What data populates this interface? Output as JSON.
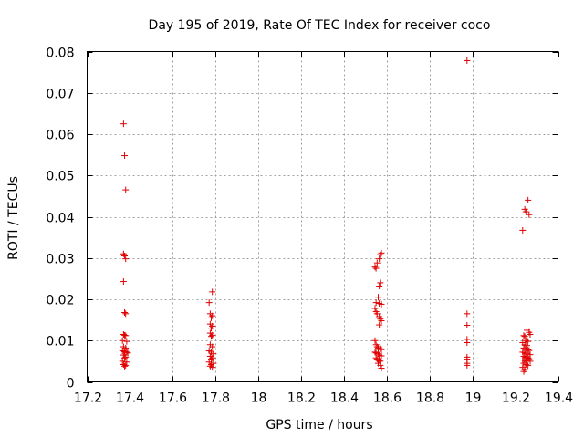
{
  "chart_data": {
    "type": "scatter",
    "title": "Day 195 of 2019, Rate Of TEC Index for receiver coco",
    "xlabel": "GPS time / hours",
    "ylabel": "ROTI / TECUs",
    "xlim": [
      17.2,
      19.4
    ],
    "ylim": [
      0,
      0.08
    ],
    "xticks": [
      "17.2",
      "17.4",
      "17.6",
      "17.8",
      "18",
      "18.2",
      "18.4",
      "18.6",
      "18.8",
      "19",
      "19.2",
      "19.4"
    ],
    "yticks": [
      "0",
      "0.01",
      "0.02",
      "0.03",
      "0.04",
      "0.05",
      "0.06",
      "0.07",
      "0.08"
    ],
    "grid": true,
    "marker": "+",
    "color": "#e00000",
    "series": [
      {
        "name": "ROTI",
        "points": [
          [
            17.37,
            0.0625
          ],
          [
            17.375,
            0.0548
          ],
          [
            17.38,
            0.0465
          ],
          [
            17.37,
            0.031
          ],
          [
            17.375,
            0.0305
          ],
          [
            17.38,
            0.0298
          ],
          [
            17.37,
            0.0243
          ],
          [
            17.375,
            0.0168
          ],
          [
            17.38,
            0.0165
          ],
          [
            17.37,
            0.0115
          ],
          [
            17.375,
            0.0113
          ],
          [
            17.38,
            0.0112
          ],
          [
            17.365,
            0.01
          ],
          [
            17.385,
            0.0098
          ],
          [
            17.37,
            0.0085
          ],
          [
            17.38,
            0.0082
          ],
          [
            17.365,
            0.0075
          ],
          [
            17.375,
            0.0073
          ],
          [
            17.385,
            0.0072
          ],
          [
            17.39,
            0.007
          ],
          [
            17.37,
            0.0065
          ],
          [
            17.38,
            0.006
          ],
          [
            17.375,
            0.0058
          ],
          [
            17.365,
            0.005
          ],
          [
            17.385,
            0.0048
          ],
          [
            17.37,
            0.0042
          ],
          [
            17.38,
            0.004
          ],
          [
            17.375,
            0.0038
          ],
          [
            17.785,
            0.0218
          ],
          [
            17.77,
            0.0192
          ],
          [
            17.775,
            0.0165
          ],
          [
            17.785,
            0.016
          ],
          [
            17.78,
            0.0155
          ],
          [
            17.775,
            0.014
          ],
          [
            17.785,
            0.0135
          ],
          [
            17.78,
            0.013
          ],
          [
            17.775,
            0.0118
          ],
          [
            17.785,
            0.0113
          ],
          [
            17.78,
            0.011
          ],
          [
            17.775,
            0.009
          ],
          [
            17.785,
            0.0085
          ],
          [
            17.77,
            0.0075
          ],
          [
            17.78,
            0.0072
          ],
          [
            17.79,
            0.0068
          ],
          [
            17.775,
            0.0062
          ],
          [
            17.785,
            0.0058
          ],
          [
            17.78,
            0.0055
          ],
          [
            17.77,
            0.0048
          ],
          [
            17.79,
            0.0045
          ],
          [
            17.78,
            0.0042
          ],
          [
            17.775,
            0.0038
          ],
          [
            17.785,
            0.0035
          ],
          [
            18.575,
            0.0312
          ],
          [
            18.57,
            0.0308
          ],
          [
            18.565,
            0.0298
          ],
          [
            18.555,
            0.0288
          ],
          [
            18.545,
            0.0278
          ],
          [
            18.55,
            0.0275
          ],
          [
            18.57,
            0.024
          ],
          [
            18.565,
            0.0232
          ],
          [
            18.56,
            0.0205
          ],
          [
            18.55,
            0.0192
          ],
          [
            18.565,
            0.019
          ],
          [
            18.575,
            0.0188
          ],
          [
            18.545,
            0.0178
          ],
          [
            18.55,
            0.017
          ],
          [
            18.555,
            0.0165
          ],
          [
            18.565,
            0.0158
          ],
          [
            18.57,
            0.0152
          ],
          [
            18.575,
            0.0148
          ],
          [
            18.565,
            0.0138
          ],
          [
            18.545,
            0.01
          ],
          [
            18.55,
            0.009
          ],
          [
            18.555,
            0.0085
          ],
          [
            18.56,
            0.0082
          ],
          [
            18.57,
            0.008
          ],
          [
            18.575,
            0.0078
          ],
          [
            18.545,
            0.0072
          ],
          [
            18.55,
            0.007
          ],
          [
            18.56,
            0.0068
          ],
          [
            18.565,
            0.0065
          ],
          [
            18.575,
            0.0063
          ],
          [
            18.55,
            0.0058
          ],
          [
            18.555,
            0.0055
          ],
          [
            18.565,
            0.0052
          ],
          [
            18.57,
            0.005
          ],
          [
            18.56,
            0.0045
          ],
          [
            18.57,
            0.004
          ],
          [
            18.575,
            0.0033
          ],
          [
            18.975,
            0.0778
          ],
          [
            18.975,
            0.0165
          ],
          [
            18.975,
            0.0137
          ],
          [
            18.975,
            0.0103
          ],
          [
            18.975,
            0.0095
          ],
          [
            18.975,
            0.006
          ],
          [
            18.975,
            0.0055
          ],
          [
            18.975,
            0.0045
          ],
          [
            18.975,
            0.004
          ],
          [
            19.26,
            0.044
          ],
          [
            19.245,
            0.0418
          ],
          [
            19.25,
            0.0412
          ],
          [
            19.265,
            0.0405
          ],
          [
            19.235,
            0.0367
          ],
          [
            19.255,
            0.0125
          ],
          [
            19.265,
            0.012
          ],
          [
            19.27,
            0.0115
          ],
          [
            19.24,
            0.0112
          ],
          [
            19.245,
            0.011
          ],
          [
            19.25,
            0.01
          ],
          [
            19.26,
            0.0098
          ],
          [
            19.235,
            0.0095
          ],
          [
            19.245,
            0.009
          ],
          [
            19.255,
            0.0088
          ],
          [
            19.24,
            0.0082
          ],
          [
            19.25,
            0.008
          ],
          [
            19.26,
            0.0078
          ],
          [
            19.265,
            0.0076
          ],
          [
            19.235,
            0.0072
          ],
          [
            19.245,
            0.007
          ],
          [
            19.255,
            0.0068
          ],
          [
            19.27,
            0.0066
          ],
          [
            19.24,
            0.0062
          ],
          [
            19.25,
            0.006
          ],
          [
            19.26,
            0.0058
          ],
          [
            19.265,
            0.0056
          ],
          [
            19.235,
            0.0053
          ],
          [
            19.245,
            0.0052
          ],
          [
            19.255,
            0.005
          ],
          [
            19.27,
            0.005
          ],
          [
            19.24,
            0.0045
          ],
          [
            19.25,
            0.0042
          ],
          [
            19.26,
            0.004
          ],
          [
            19.235,
            0.0035
          ],
          [
            19.245,
            0.003
          ],
          [
            19.24,
            0.0025
          ]
        ]
      }
    ]
  }
}
